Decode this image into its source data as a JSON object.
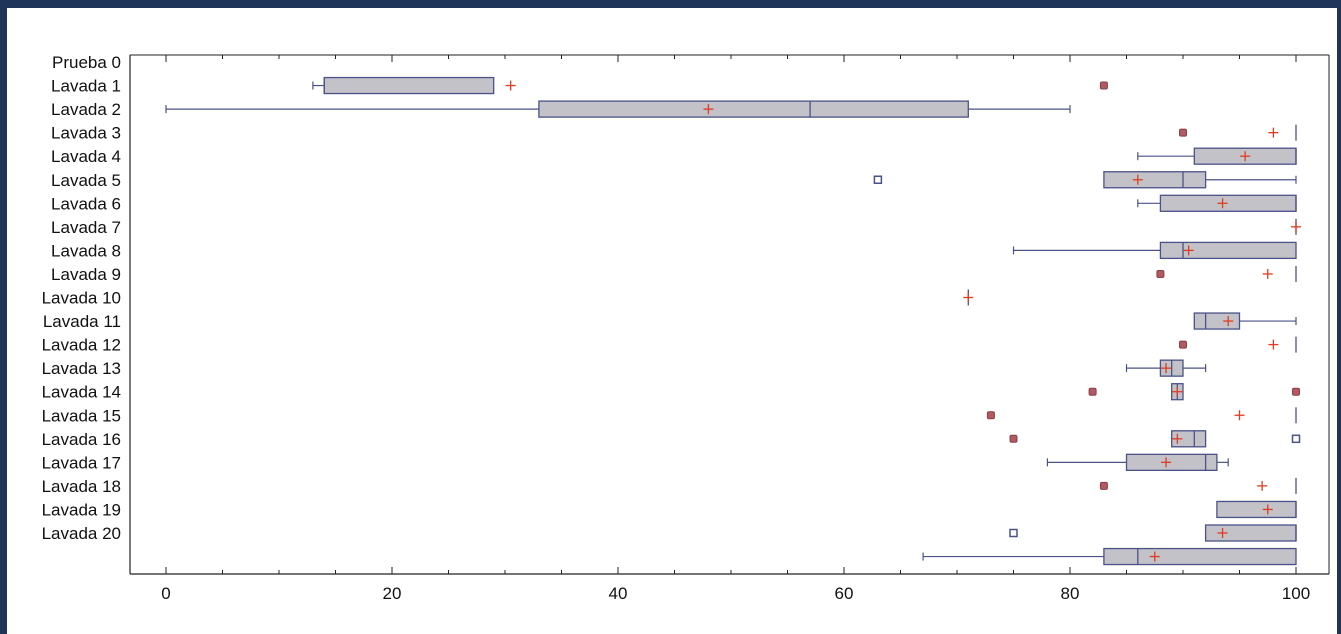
{
  "chart_data": {
    "type": "boxplot",
    "title": "",
    "xlabel": "",
    "ylabel": "",
    "xlim": [
      0,
      100
    ],
    "x_ticks": [
      "0",
      "20",
      "40",
      "60",
      "80",
      "100"
    ],
    "grid": false,
    "categories": [
      "Prueba 0",
      "Lavada 1",
      "Lavada 2",
      "Lavada 3",
      "Lavada 4",
      "Lavada 5",
      "Lavada 6",
      "Lavada 7",
      "Lavada 8",
      "Lavada 9",
      "Lavada 10",
      "Lavada 11",
      "Lavada 12",
      "Lavada 13",
      "Lavada 14",
      "Lavada 15",
      "Lavada 16",
      "Lavada 17",
      "Lavada 18",
      "Lavada 19",
      "Lavada 20"
    ],
    "boxes": [
      null,
      {
        "whisker_low": 13,
        "q1": 14,
        "median": 14,
        "q3": 29,
        "whisker_high": 29,
        "mean": 30.5,
        "outliers": [
          {
            "value": 83,
            "type": "far"
          }
        ]
      },
      {
        "whisker_low": 0,
        "q1": 33,
        "median": 57,
        "q3": 71,
        "whisker_high": 80,
        "mean": 48,
        "outliers": []
      },
      {
        "whisker_low": 100,
        "q1": 100,
        "median": 100,
        "q3": 100,
        "whisker_high": 100,
        "mean": 98,
        "outliers": [
          {
            "value": 90,
            "type": "far"
          }
        ]
      },
      {
        "whisker_low": 86,
        "q1": 91,
        "median": 100,
        "q3": 100,
        "whisker_high": 100,
        "mean": 95.5,
        "outliers": []
      },
      {
        "whisker_low": 83,
        "q1": 83,
        "median": 90,
        "q3": 92,
        "whisker_high": 100,
        "mean": 86,
        "outliers": [
          {
            "value": 63,
            "type": "mild"
          }
        ]
      },
      {
        "whisker_low": 86,
        "q1": 88,
        "median": 100,
        "q3": 100,
        "whisker_high": 100,
        "mean": 93.5,
        "outliers": []
      },
      {
        "whisker_low": 100,
        "q1": 100,
        "median": 100,
        "q3": 100,
        "whisker_high": 100,
        "mean": 100,
        "outliers": []
      },
      {
        "whisker_low": 75,
        "q1": 88,
        "median": 90,
        "q3": 100,
        "whisker_high": 100,
        "mean": 90.5,
        "outliers": []
      },
      {
        "whisker_low": 100,
        "q1": 100,
        "median": 100,
        "q3": 100,
        "whisker_high": 100,
        "mean": 97.5,
        "outliers": [
          {
            "value": 88,
            "type": "far"
          }
        ]
      },
      {
        "whisker_low": 71,
        "q1": 71,
        "median": 71,
        "q3": 71,
        "whisker_high": 71,
        "mean": 71,
        "outliers": []
      },
      {
        "whisker_low": 91,
        "q1": 91,
        "median": 92,
        "q3": 95,
        "whisker_high": 100,
        "mean": 94,
        "outliers": []
      },
      {
        "whisker_low": 100,
        "q1": 100,
        "median": 100,
        "q3": 100,
        "whisker_high": 100,
        "mean": 98,
        "outliers": [
          {
            "value": 90,
            "type": "far"
          }
        ]
      },
      {
        "whisker_low": 85,
        "q1": 88,
        "median": 89,
        "q3": 90,
        "whisker_high": 92,
        "mean": 88.5,
        "outliers": []
      },
      {
        "whisker_low": 89,
        "q1": 89,
        "median": 89.5,
        "q3": 90,
        "whisker_high": 90,
        "mean": 89.5,
        "outliers": [
          {
            "value": 82,
            "type": "far"
          },
          {
            "value": 100,
            "type": "far"
          }
        ]
      },
      {
        "whisker_low": 100,
        "q1": 100,
        "median": 100,
        "q3": 100,
        "whisker_high": 100,
        "mean": 95,
        "outliers": [
          {
            "value": 73,
            "type": "far"
          }
        ]
      },
      {
        "whisker_low": 89,
        "q1": 89,
        "median": 91,
        "q3": 92,
        "whisker_high": 92,
        "mean": 89.5,
        "outliers": [
          {
            "value": 75,
            "type": "far"
          },
          {
            "value": 100,
            "type": "mild"
          }
        ]
      },
      {
        "whisker_low": 78,
        "q1": 85,
        "median": 92,
        "q3": 93,
        "whisker_high": 94,
        "mean": 88.5,
        "outliers": []
      },
      {
        "whisker_low": 100,
        "q1": 100,
        "median": 100,
        "q3": 100,
        "whisker_high": 100,
        "mean": 97,
        "outliers": [
          {
            "value": 83,
            "type": "far"
          }
        ]
      },
      {
        "whisker_low": 93,
        "q1": 93,
        "median": 100,
        "q3": 100,
        "whisker_high": 100,
        "mean": 97.5,
        "outliers": []
      },
      {
        "whisker_low": 92,
        "q1": 92,
        "median": 100,
        "q3": 100,
        "whisker_high": 100,
        "mean": 93.5,
        "outliers": [
          {
            "value": 75,
            "type": "mild"
          }
        ]
      },
      {
        "whisker_low": 67,
        "q1": 83,
        "median": 86,
        "q3": 100,
        "whisker_high": 100,
        "mean": 87.5,
        "outliers": []
      }
    ],
    "colors": {
      "box_fill": "#c2c2c8",
      "box_stroke": "#4a5288",
      "mean_marker": "#e23b1e",
      "far_outlier": "#b25a62",
      "mild_outlier": "#4a5288",
      "axis": "#222222",
      "page_background": "#1f3559"
    }
  }
}
